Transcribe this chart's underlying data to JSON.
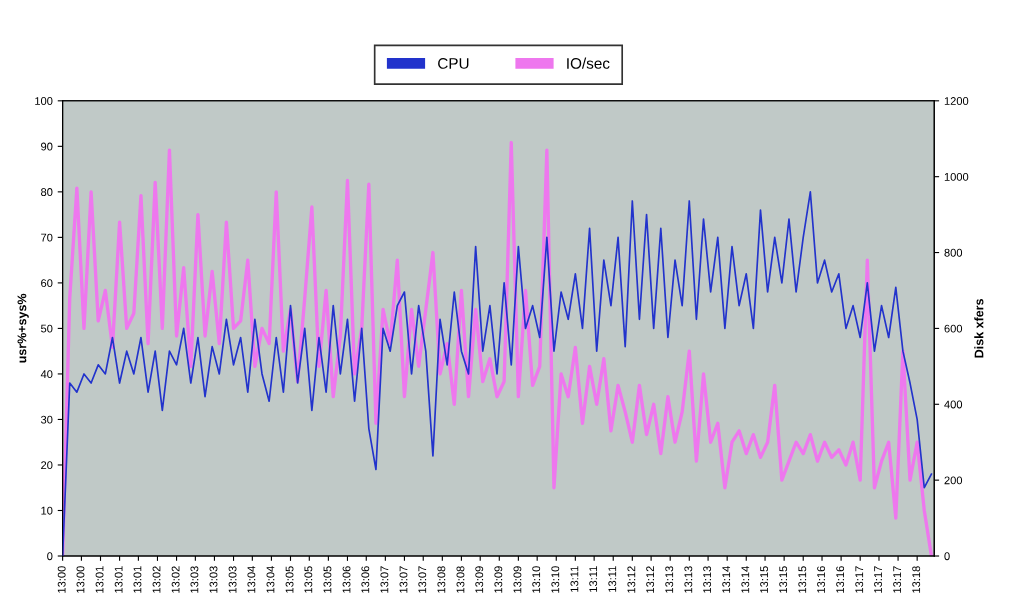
{
  "chart_data": {
    "type": "line",
    "ylabel": "usr%+sys%",
    "y2label": "Disk xfers",
    "x": [
      12.9967,
      12.9992,
      13.0017,
      13.0042,
      13.0067,
      13.0092,
      13.0117,
      13.0142,
      13.0167,
      13.0192,
      13.0217,
      13.0242,
      13.0267,
      13.0292,
      13.0317,
      13.0342,
      13.0367,
      13.0392,
      13.0417,
      13.0442,
      13.0467,
      13.0492,
      13.0517,
      13.0542,
      13.0567,
      13.0592,
      13.0617,
      13.0642,
      13.0667,
      13.0692,
      13.0717,
      13.0742,
      13.0767,
      13.0792,
      13.0817,
      13.0842,
      13.0867,
      13.0892,
      13.0917,
      13.0942,
      13.0967,
      13.0992,
      13.1017,
      13.1042,
      13.1067,
      13.1092,
      13.1117,
      13.1142,
      13.1167,
      13.1192,
      13.1217,
      13.1242,
      13.1267,
      13.1292,
      13.1317,
      13.1342,
      13.1367,
      13.1392,
      13.1417,
      13.1442,
      13.1467,
      13.1492,
      13.1517,
      13.1542,
      13.1567,
      13.1592,
      13.1617,
      13.1642,
      13.1667,
      13.1692,
      13.1717,
      13.1742,
      13.1767,
      13.1792,
      13.1817,
      13.1842,
      13.1867,
      13.1892,
      13.1917,
      13.1942,
      13.1967,
      13.1992,
      13.2017,
      13.2042,
      13.2067,
      13.2092,
      13.2117,
      13.2142,
      13.2167,
      13.2192,
      13.2217,
      13.2242,
      13.2267,
      13.2292,
      13.2317,
      13.2342,
      13.2367,
      13.2392,
      13.2417,
      13.2442,
      13.2467,
      13.2492,
      13.2517,
      13.2542,
      13.2567,
      13.2592,
      13.2617,
      13.2642,
      13.2667,
      13.2692,
      13.2717,
      13.2742,
      13.2767,
      13.2792,
      13.2817,
      13.2842,
      13.2867,
      13.2892,
      13.2917,
      13.2942,
      13.2967,
      13.2992,
      13.3017
    ],
    "series": [
      {
        "name": "CPU",
        "color": "#2233cc",
        "values": [
          0,
          38,
          36,
          40,
          38,
          42,
          40,
          48,
          38,
          45,
          40,
          48,
          36,
          45,
          32,
          45,
          42,
          50,
          38,
          48,
          35,
          46,
          40,
          52,
          42,
          48,
          36,
          52,
          40,
          34,
          48,
          36,
          55,
          38,
          50,
          32,
          48,
          36,
          55,
          40,
          52,
          34,
          50,
          28,
          19,
          50,
          45,
          55,
          58,
          40,
          55,
          45,
          22,
          52,
          42,
          58,
          45,
          40,
          68,
          45,
          55,
          40,
          60,
          42,
          68,
          50,
          55,
          48,
          70,
          45,
          58,
          52,
          62,
          50,
          72,
          45,
          65,
          55,
          70,
          46,
          78,
          52,
          75,
          50,
          72,
          48,
          65,
          55,
          78,
          52,
          74,
          58,
          70,
          50,
          68,
          55,
          62,
          50,
          76,
          58,
          70,
          60,
          74,
          58,
          70,
          80,
          60,
          65,
          58,
          62,
          50,
          55,
          48,
          60,
          45,
          55,
          48,
          59,
          45,
          38,
          30,
          15,
          18
        ]
      },
      {
        "name": "IO/sec",
        "color": "#ee77ee",
        "axis": "y2",
        "values": [
          0,
          680,
          970,
          600,
          960,
          620,
          700,
          550,
          880,
          600,
          640,
          950,
          560,
          985,
          600,
          1070,
          580,
          760,
          500,
          900,
          580,
          750,
          560,
          880,
          600,
          620,
          780,
          500,
          600,
          560,
          960,
          540,
          650,
          460,
          680,
          920,
          500,
          700,
          420,
          580,
          990,
          480,
          600,
          980,
          350,
          650,
          560,
          780,
          420,
          650,
          500,
          650,
          800,
          480,
          560,
          400,
          700,
          420,
          650,
          460,
          520,
          420,
          460,
          1090,
          420,
          700,
          450,
          500,
          1070,
          180,
          480,
          420,
          550,
          350,
          500,
          400,
          520,
          330,
          450,
          380,
          300,
          450,
          320,
          400,
          270,
          420,
          300,
          380,
          540,
          250,
          480,
          300,
          350,
          180,
          300,
          330,
          270,
          320,
          260,
          300,
          450,
          200,
          250,
          300,
          270,
          320,
          250,
          300,
          260,
          280,
          240,
          300,
          200,
          780,
          180,
          250,
          300,
          100,
          540,
          200,
          300,
          120,
          0
        ]
      }
    ],
    "xlim": [
      12.9967,
      13.3027
    ],
    "xticks": [
      {
        "value": 12.9967,
        "label": "13:00"
      },
      {
        "value": 13.0033,
        "label": "13:00"
      },
      {
        "value": 13.01,
        "label": "13:01"
      },
      {
        "value": 13.0167,
        "label": "13:01"
      },
      {
        "value": 13.0233,
        "label": "13:01"
      },
      {
        "value": 13.03,
        "label": "13:02"
      },
      {
        "value": 13.0367,
        "label": "13:02"
      },
      {
        "value": 13.0433,
        "label": "13:03"
      },
      {
        "value": 13.05,
        "label": "13:03"
      },
      {
        "value": 13.0567,
        "label": "13:03"
      },
      {
        "value": 13.0633,
        "label": "13:04"
      },
      {
        "value": 13.07,
        "label": "13:04"
      },
      {
        "value": 13.0767,
        "label": "13:05"
      },
      {
        "value": 13.0833,
        "label": "13:05"
      },
      {
        "value": 13.09,
        "label": "13:05"
      },
      {
        "value": 13.0967,
        "label": "13:06"
      },
      {
        "value": 13.1033,
        "label": "13:06"
      },
      {
        "value": 13.11,
        "label": "13:07"
      },
      {
        "value": 13.1167,
        "label": "13:07"
      },
      {
        "value": 13.1233,
        "label": "13:07"
      },
      {
        "value": 13.13,
        "label": "13:08"
      },
      {
        "value": 13.1367,
        "label": "13:08"
      },
      {
        "value": 13.1433,
        "label": "13:09"
      },
      {
        "value": 13.15,
        "label": "13:09"
      },
      {
        "value": 13.1567,
        "label": "13:09"
      },
      {
        "value": 13.1633,
        "label": "13:10"
      },
      {
        "value": 13.17,
        "label": "13:10"
      },
      {
        "value": 13.1767,
        "label": "13:11"
      },
      {
        "value": 13.1833,
        "label": "13:11"
      },
      {
        "value": 13.19,
        "label": "13:11"
      },
      {
        "value": 13.1967,
        "label": "13:12"
      },
      {
        "value": 13.2033,
        "label": "13:12"
      },
      {
        "value": 13.21,
        "label": "13:13"
      },
      {
        "value": 13.2167,
        "label": "13:13"
      },
      {
        "value": 13.2233,
        "label": "13:13"
      },
      {
        "value": 13.23,
        "label": "13:14"
      },
      {
        "value": 13.2367,
        "label": "13:14"
      },
      {
        "value": 13.2433,
        "label": "13:15"
      },
      {
        "value": 13.25,
        "label": "13:15"
      },
      {
        "value": 13.2567,
        "label": "13:15"
      },
      {
        "value": 13.2633,
        "label": "13:16"
      },
      {
        "value": 13.27,
        "label": "13:16"
      },
      {
        "value": 13.2767,
        "label": "13:17"
      },
      {
        "value": 13.2833,
        "label": "13:17"
      },
      {
        "value": 13.29,
        "label": "13:17"
      },
      {
        "value": 13.2967,
        "label": "13:18"
      }
    ],
    "ylim": [
      0,
      100
    ],
    "yticks": [
      0,
      10,
      20,
      30,
      40,
      50,
      60,
      70,
      80,
      90,
      100
    ],
    "y2lim": [
      0,
      1200
    ],
    "y2ticks": [
      0,
      200,
      400,
      600,
      800,
      1000,
      1200
    ],
    "legend": "top",
    "grid": false,
    "marker": "none",
    "line_style": "solid"
  }
}
